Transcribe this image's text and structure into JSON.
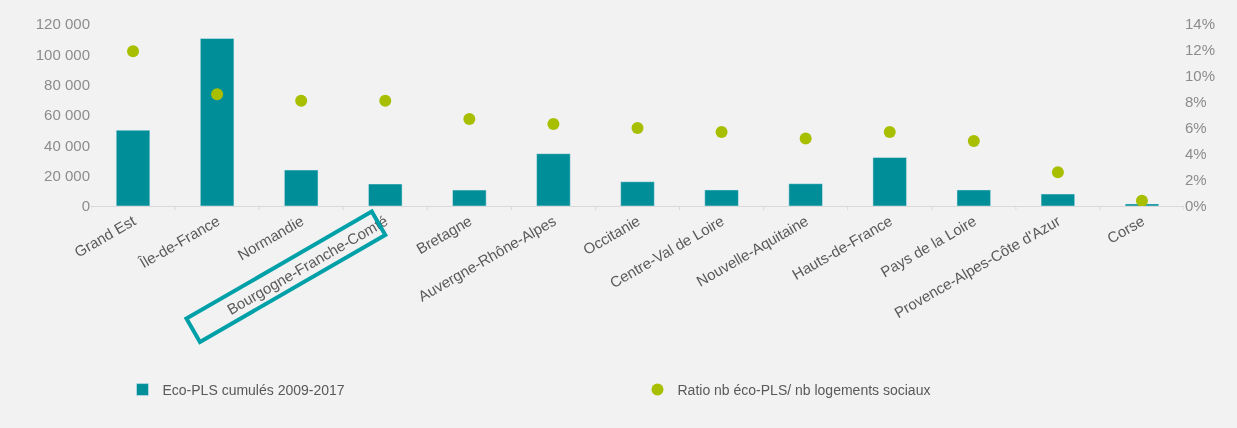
{
  "chart_data": {
    "type": "bar",
    "categories": [
      "Grand Est",
      "Île-de-France",
      "Normandie",
      "Bourgogne-Franche-Comté",
      "Bretagne",
      "Auvergne-Rhône-Alpes",
      "Occitanie",
      "Centre-Val de Loire",
      "Nouvelle-Aquitaine",
      "Hauts-de-France",
      "Pays de la Loire",
      "Provence-Alpes-Côte d'Azur",
      "Corse"
    ],
    "series": [
      {
        "name": "Eco-PLS cumulés 2009-2017",
        "type": "bar",
        "color": "#008f98",
        "values": [
          50000,
          110500,
          23700,
          14500,
          10500,
          34500,
          16000,
          10600,
          14700,
          32000,
          10600,
          7900,
          1400
        ]
      },
      {
        "name": "Ratio nb éco-PLS/ nb logements sociaux",
        "type": "scatter",
        "axis": "y2",
        "marker": "circle",
        "color": "#a8bf00",
        "values": [
          11.9,
          8.6,
          8.1,
          8.1,
          6.7,
          6.3,
          6.0,
          5.7,
          5.2,
          5.7,
          5.0,
          2.6,
          0.4
        ]
      }
    ],
    "ylim": [
      0,
      120000
    ],
    "yticks": [
      0,
      {
        "value": 20000,
        "label": "20 000"
      },
      {
        "value": 40000,
        "label": "40 000"
      },
      {
        "value": 60000,
        "label": "60 000"
      },
      {
        "value": 80000,
        "label": "80 000"
      },
      {
        "value": 100000,
        "label": "100 000"
      },
      {
        "value": 120000,
        "label": "120 000"
      }
    ],
    "y2lim": [
      0,
      14
    ],
    "y2ticks": [
      {
        "value": 0,
        "label": "0%"
      },
      {
        "value": 2,
        "label": "2%"
      },
      {
        "value": 4,
        "label": "4%"
      },
      {
        "value": 6,
        "label": "6%"
      },
      {
        "value": 8,
        "label": "8%"
      },
      {
        "value": 10,
        "label": "10%"
      },
      {
        "value": 12,
        "label": "12%"
      },
      {
        "value": 14,
        "label": "14%"
      }
    ],
    "grid": false,
    "legend": "bottom"
  }
}
